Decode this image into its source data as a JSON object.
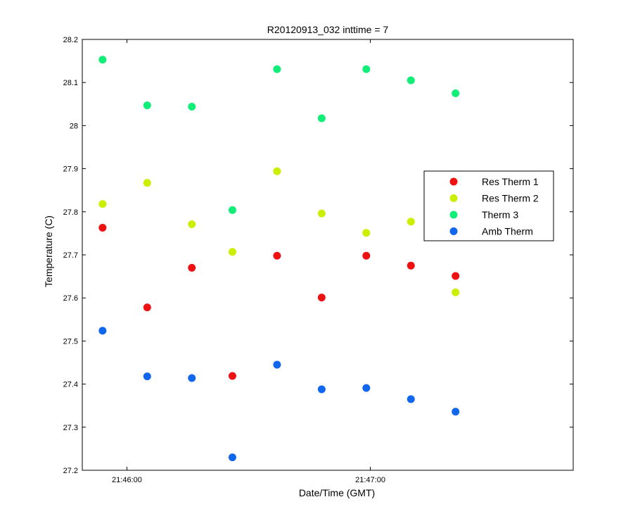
{
  "chart_data": {
    "type": "scatter",
    "title": "R20120913_032 inttime = 7",
    "xlabel": "Date/Time (GMT)",
    "ylabel": "Temperature (C)",
    "ylim": [
      27.2,
      28.2
    ],
    "yticks": [
      27.2,
      27.3,
      27.4,
      27.5,
      27.6,
      27.7,
      27.8,
      27.9,
      28,
      28.1,
      28.2
    ],
    "ytick_labels": [
      "27.2",
      "27.3",
      "27.4",
      "27.5",
      "27.6",
      "27.7",
      "27.8",
      "27.9",
      "28",
      "28.1",
      "28.2"
    ],
    "xlim": [
      "21:45:49",
      "21:47:50"
    ],
    "xticks": [
      "21:46:00",
      "21:47:00"
    ],
    "xtick_labels": [
      "21:46:00",
      "21:47:00"
    ],
    "x": [
      "21:45:54",
      "21:46:05",
      "21:46:16",
      "21:46:26",
      "21:46:37",
      "21:46:48",
      "21:46:59",
      "21:47:10",
      "21:47:21"
    ],
    "legend_position": "right",
    "grid": false,
    "series": [
      {
        "name": "Res Therm 1",
        "color": "#ee1111",
        "values": [
          27.763,
          27.578,
          27.67,
          27.419,
          27.698,
          27.601,
          27.698,
          27.675,
          27.651
        ]
      },
      {
        "name": "Res Therm 2",
        "color": "#ccee00",
        "values": [
          27.818,
          27.867,
          27.771,
          27.707,
          27.894,
          27.796,
          27.751,
          27.777,
          27.613
        ]
      },
      {
        "name": "Therm 3",
        "color": "#11ee77",
        "values": [
          28.153,
          28.047,
          28.044,
          27.804,
          28.131,
          28.017,
          28.131,
          28.105,
          28.075
        ]
      },
      {
        "name": "Amb Therm",
        "color": "#1166ee",
        "values": [
          27.524,
          27.418,
          27.414,
          27.23,
          27.445,
          27.388,
          27.391,
          27.365,
          27.336
        ]
      }
    ]
  }
}
